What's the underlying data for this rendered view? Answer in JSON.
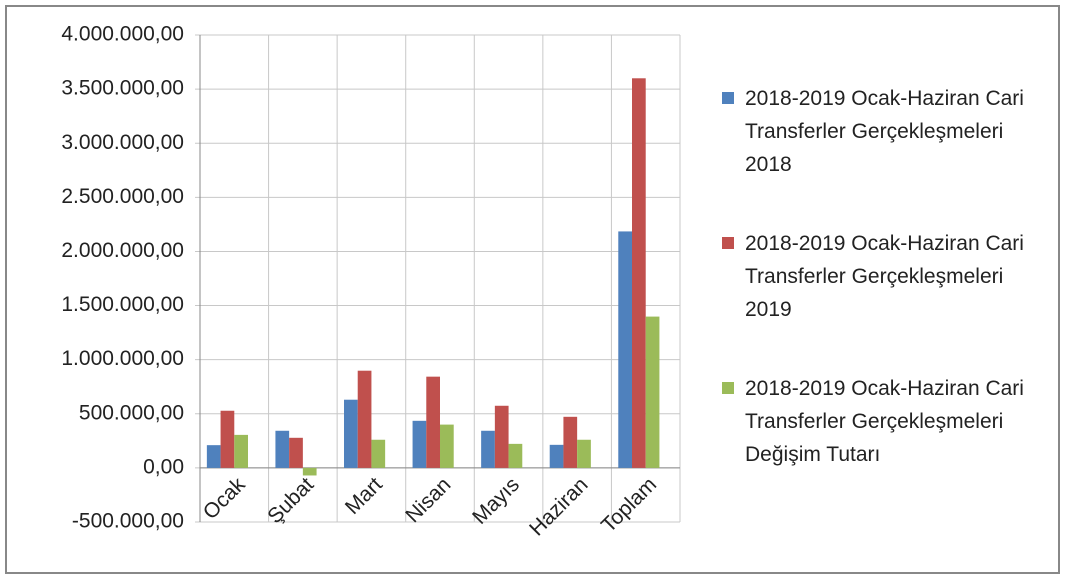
{
  "chart_data": {
    "type": "bar",
    "categories": [
      "Ocak",
      "Şubat",
      "Mart",
      "Nisan",
      "Mayıs",
      "Haziran",
      "Toplam"
    ],
    "series": [
      {
        "name": "2018-2019 Ocak-Haziran Cari Transferler Gerçekleşmeleri 2018",
        "color": "#4f81bd",
        "values": [
          210000,
          343000,
          630000,
          435000,
          343000,
          213000,
          2185000
        ]
      },
      {
        "name": "2018-2019 Ocak-Haziran Cari Transferler Gerçekleşmeleri 2019",
        "color": "#c0504d",
        "values": [
          528000,
          278000,
          898000,
          843000,
          574000,
          472000,
          3600000
        ]
      },
      {
        "name": "2018-2019 Ocak-Haziran Cari Transferler Gerçekleşmeleri Değişim Tutarı",
        "color": "#9bbb59",
        "values": [
          305000,
          -70000,
          260000,
          400000,
          222000,
          260000,
          1398000
        ]
      }
    ],
    "ylim": [
      -500000,
      4000000
    ],
    "yticks": [
      {
        "value": -500000,
        "label": "-500.000,00"
      },
      {
        "value": 0,
        "label": "0,00"
      },
      {
        "value": 500000,
        "label": "500.000,00"
      },
      {
        "value": 1000000,
        "label": "1.000.000,00"
      },
      {
        "value": 1500000,
        "label": "1.500.000,00"
      },
      {
        "value": 2000000,
        "label": "2.000.000,00"
      },
      {
        "value": 2500000,
        "label": "2.500.000,00"
      },
      {
        "value": 3000000,
        "label": "3.000.000,00"
      },
      {
        "value": 3500000,
        "label": "3.500.000,00"
      },
      {
        "value": 4000000,
        "label": "4.000.000,00"
      }
    ],
    "grid": true,
    "legend": "right"
  }
}
